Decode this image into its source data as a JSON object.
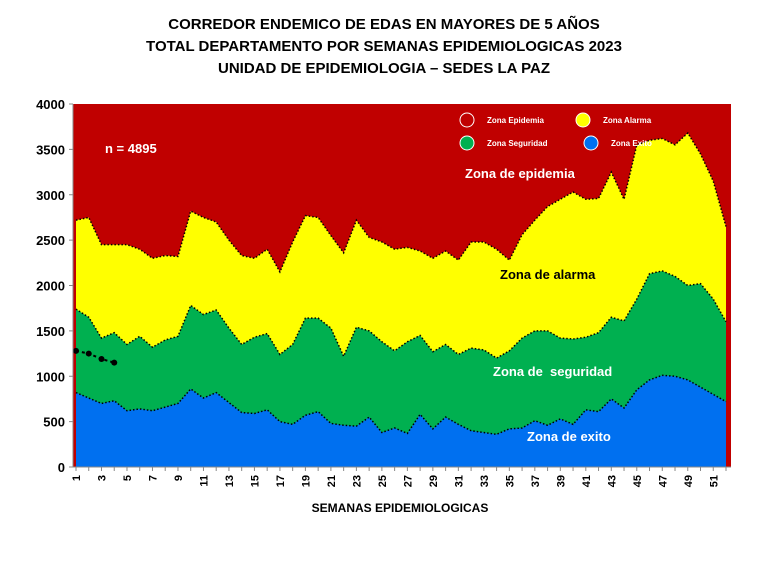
{
  "chart_data": {
    "type": "corridor",
    "title": [
      "CORREDOR ENDEMICO DE EDAS EN MAYORES DE 5 AÑOS",
      "TOTAL DEPARTAMENTO POR SEMANAS EPIDEMIOLOGICAS 2023",
      "UNIDAD DE EPIDEMIOLOGIA – SEDES LA PAZ"
    ],
    "x_label": "SEMANAS EPIDEMIOLOGICAS",
    "categories": [
      1,
      null,
      3,
      null,
      5,
      null,
      7,
      null,
      9,
      null,
      11,
      null,
      13,
      null,
      15,
      null,
      17,
      null,
      19,
      null,
      21,
      null,
      23,
      null,
      25,
      null,
      27,
      null,
      29,
      null,
      31,
      null,
      33,
      null,
      35,
      null,
      37,
      null,
      39,
      null,
      41,
      null,
      43,
      null,
      45,
      null,
      47,
      null,
      49,
      null,
      51,
      null
    ],
    "ylim": [
      0,
      4000
    ],
    "yticks": [
      0,
      500,
      1000,
      1500,
      2000,
      2500,
      3000,
      3500,
      4000
    ],
    "epidemic_zone": {
      "name": "Zona Epidemia",
      "color": "#c00000"
    },
    "series": [
      {
        "name": "Zona Alarma",
        "color": "#ffff00",
        "values": [
          2720,
          2750,
          2450,
          2450,
          2450,
          2400,
          2300,
          2330,
          2320,
          2820,
          2750,
          2700,
          2500,
          2330,
          2300,
          2400,
          2150,
          2480,
          2770,
          2750,
          2550,
          2360,
          2720,
          2530,
          2480,
          2400,
          2420,
          2380,
          2300,
          2380,
          2280,
          2480,
          2480,
          2400,
          2280,
          2560,
          2720,
          2870,
          2950,
          3030,
          2950,
          2960,
          3250,
          2950,
          3550,
          3600,
          3620,
          3550,
          3680,
          3450,
          3150,
          2650
        ]
      },
      {
        "name": "Zona Seguridad",
        "color": "#00b050",
        "values": [
          1740,
          1650,
          1420,
          1480,
          1350,
          1440,
          1320,
          1400,
          1440,
          1780,
          1680,
          1730,
          1530,
          1350,
          1430,
          1470,
          1240,
          1350,
          1640,
          1640,
          1530,
          1220,
          1540,
          1500,
          1380,
          1280,
          1380,
          1450,
          1270,
          1350,
          1240,
          1310,
          1290,
          1200,
          1280,
          1420,
          1500,
          1500,
          1420,
          1410,
          1430,
          1480,
          1650,
          1610,
          1850,
          2130,
          2160,
          2100,
          2000,
          2020,
          1850,
          1600
        ]
      },
      {
        "name": "Zona Exito",
        "color": "#0070f0",
        "values": [
          820,
          760,
          700,
          730,
          620,
          640,
          620,
          660,
          700,
          860,
          760,
          820,
          710,
          600,
          590,
          630,
          500,
          470,
          570,
          610,
          480,
          460,
          450,
          550,
          380,
          430,
          370,
          580,
          420,
          550,
          470,
          400,
          380,
          360,
          420,
          430,
          510,
          460,
          530,
          470,
          630,
          610,
          750,
          650,
          850,
          960,
          1010,
          1000,
          960,
          880,
          800,
          720
        ]
      }
    ],
    "current": {
      "color": "#000000",
      "values": [
        1280,
        1250,
        1190,
        1150
      ]
    },
    "annotations": [
      "n = 4895",
      "Zona de epidemia",
      "Zona de alarma",
      "Zona de  seguridad",
      "Zona de exito"
    ]
  }
}
